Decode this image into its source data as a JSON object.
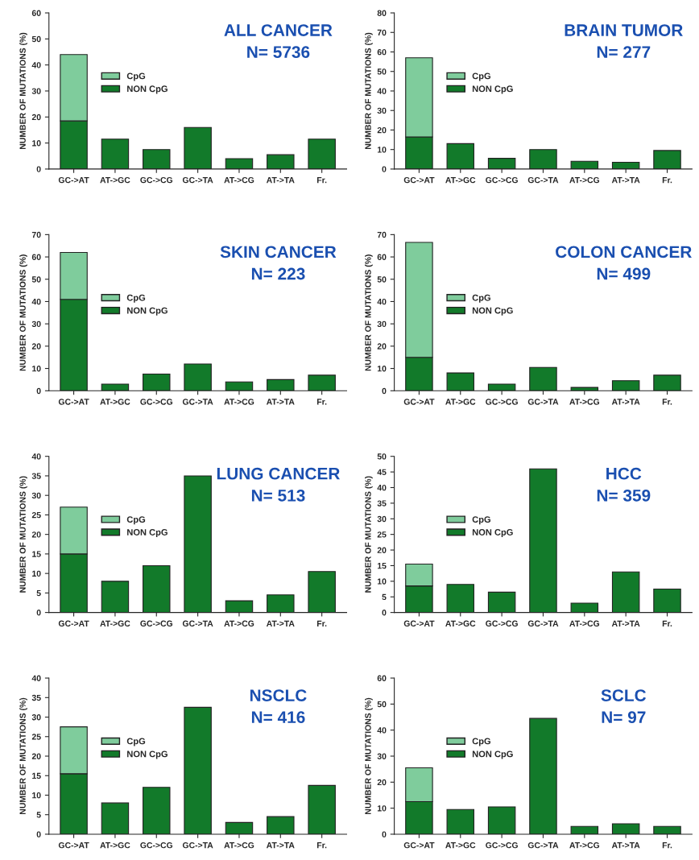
{
  "chart_data": [
    {
      "type": "bar",
      "stacked": true,
      "title": "ALL CANCER",
      "subtitle": "N= 5736",
      "ylabel": "NUMBER OF MUTATIONS (%)",
      "categories": [
        "GC->AT",
        "AT->GC",
        "GC->CG",
        "GC->TA",
        "AT->CG",
        "AT->TA",
        "Fr."
      ],
      "series": [
        {
          "name": "NON CpG",
          "color": "#127a2a",
          "values": [
            18.5,
            11.5,
            7.5,
            16,
            4,
            5.5,
            11.5
          ]
        },
        {
          "name": "CpG",
          "color": "#7fcc9c",
          "values": [
            25.5,
            null,
            null,
            null,
            null,
            null,
            null
          ]
        }
      ],
      "ylim": [
        0,
        60
      ],
      "yticks": [
        0,
        10,
        20,
        30,
        40,
        50,
        60
      ],
      "legend": "left",
      "grid": false
    },
    {
      "type": "bar",
      "stacked": true,
      "title": "BRAIN TUMOR",
      "subtitle": "N= 277",
      "ylabel": "NUMBER OF MUTATIONS (%)",
      "categories": [
        "GC->AT",
        "AT->GC",
        "GC->CG",
        "GC->TA",
        "AT->CG",
        "AT->TA",
        "Fr."
      ],
      "series": [
        {
          "name": "NON CpG",
          "color": "#127a2a",
          "values": [
            16.5,
            13,
            5.5,
            10,
            4,
            3.5,
            9.5
          ]
        },
        {
          "name": "CpG",
          "color": "#7fcc9c",
          "values": [
            40.5,
            null,
            null,
            null,
            null,
            null,
            null
          ]
        }
      ],
      "ylim": [
        0,
        80
      ],
      "yticks": [
        0,
        10,
        20,
        30,
        40,
        50,
        60,
        70,
        80
      ],
      "legend": "left",
      "grid": false
    },
    {
      "type": "bar",
      "stacked": true,
      "title": "SKIN CANCER",
      "subtitle": "N= 223",
      "ylabel": "NUMBER OF MUTATIONS (%)",
      "categories": [
        "GC->AT",
        "AT->GC",
        "GC->CG",
        "GC->TA",
        "AT->CG",
        "AT->TA",
        "Fr."
      ],
      "series": [
        {
          "name": "NON CpG",
          "color": "#127a2a",
          "values": [
            41,
            3,
            7.5,
            12,
            4,
            5,
            7
          ]
        },
        {
          "name": "CpG",
          "color": "#7fcc9c",
          "values": [
            21,
            null,
            null,
            null,
            null,
            null,
            null
          ]
        }
      ],
      "ylim": [
        0,
        70
      ],
      "yticks": [
        0,
        10,
        20,
        30,
        40,
        50,
        60,
        70
      ],
      "legend": "left",
      "grid": false
    },
    {
      "type": "bar",
      "stacked": true,
      "title": "COLON CANCER",
      "subtitle": "N= 499",
      "ylabel": "NUMBER OF MUTATIONS (%)",
      "categories": [
        "GC->AT",
        "AT->GC",
        "GC->CG",
        "GC->TA",
        "AT->CG",
        "AT->TA",
        "Fr."
      ],
      "series": [
        {
          "name": "NON CpG",
          "color": "#127a2a",
          "values": [
            15,
            8,
            3,
            10.5,
            1.5,
            4.5,
            7
          ]
        },
        {
          "name": "CpG",
          "color": "#7fcc9c",
          "values": [
            51.5,
            null,
            null,
            null,
            null,
            null,
            null
          ]
        }
      ],
      "ylim": [
        0,
        70
      ],
      "yticks": [
        0,
        10,
        20,
        30,
        40,
        50,
        60,
        70
      ],
      "legend": "left",
      "grid": false
    },
    {
      "type": "bar",
      "stacked": true,
      "title": "LUNG CANCER",
      "subtitle": "N= 513",
      "ylabel": "NUMBER OF MUTATIONS (%)",
      "categories": [
        "GC->AT",
        "AT->GC",
        "GC->CG",
        "GC->TA",
        "AT->CG",
        "AT->TA",
        "Fr."
      ],
      "series": [
        {
          "name": "NON CpG",
          "color": "#127a2a",
          "values": [
            15,
            8,
            12,
            35,
            3,
            4.5,
            10.5
          ]
        },
        {
          "name": "CpG",
          "color": "#7fcc9c",
          "values": [
            12,
            null,
            null,
            null,
            null,
            null,
            null
          ]
        }
      ],
      "ylim": [
        0,
        40
      ],
      "yticks": [
        0,
        5,
        10,
        15,
        20,
        25,
        30,
        35,
        40
      ],
      "legend": "left",
      "grid": false
    },
    {
      "type": "bar",
      "stacked": true,
      "title": "HCC",
      "subtitle": "N= 359",
      "ylabel": "NUMBER OF MUTATIONS (%)",
      "categories": [
        "GC->AT",
        "AT->GC",
        "GC->CG",
        "GC->TA",
        "AT->CG",
        "AT->TA",
        "Fr."
      ],
      "series": [
        {
          "name": "NON CpG",
          "color": "#127a2a",
          "values": [
            8.5,
            9,
            6.5,
            46,
            3,
            13,
            7.5
          ]
        },
        {
          "name": "CpG",
          "color": "#7fcc9c",
          "values": [
            7,
            null,
            null,
            null,
            null,
            null,
            null
          ]
        }
      ],
      "ylim": [
        0,
        50
      ],
      "yticks": [
        0,
        5,
        10,
        15,
        20,
        25,
        30,
        35,
        40,
        45,
        50
      ],
      "legend": "left",
      "grid": false
    },
    {
      "type": "bar",
      "stacked": true,
      "title": "NSCLC",
      "subtitle": "N= 416",
      "ylabel": "NUMBER OF MUTATIONS (%)",
      "categories": [
        "GC->AT",
        "AT->GC",
        "GC->CG",
        "GC->TA",
        "AT->CG",
        "AT->TA",
        "Fr."
      ],
      "series": [
        {
          "name": "NON CpG",
          "color": "#127a2a",
          "values": [
            15.5,
            8,
            12,
            32.5,
            3,
            4.5,
            12.5
          ]
        },
        {
          "name": "CpG",
          "color": "#7fcc9c",
          "values": [
            12,
            null,
            null,
            null,
            null,
            null,
            null
          ]
        }
      ],
      "ylim": [
        0,
        40
      ],
      "yticks": [
        0,
        5,
        10,
        15,
        20,
        25,
        30,
        35,
        40
      ],
      "legend": "left",
      "grid": false
    },
    {
      "type": "bar",
      "stacked": true,
      "title": "SCLC",
      "subtitle": "N= 97",
      "ylabel": "NUMBER OF MUTATIONS (%)",
      "categories": [
        "GC->AT",
        "AT->GC",
        "GC->CG",
        "GC->TA",
        "AT->CG",
        "AT->TA",
        "Fr."
      ],
      "series": [
        {
          "name": "NON CpG",
          "color": "#127a2a",
          "values": [
            12.5,
            9.5,
            10.5,
            44.5,
            3,
            4,
            3
          ]
        },
        {
          "name": "CpG",
          "color": "#7fcc9c",
          "values": [
            13,
            null,
            null,
            null,
            null,
            null,
            null
          ]
        }
      ],
      "ylim": [
        0,
        60
      ],
      "yticks": [
        0,
        10,
        20,
        30,
        40,
        50,
        60
      ],
      "legend": "left",
      "grid": false
    }
  ]
}
